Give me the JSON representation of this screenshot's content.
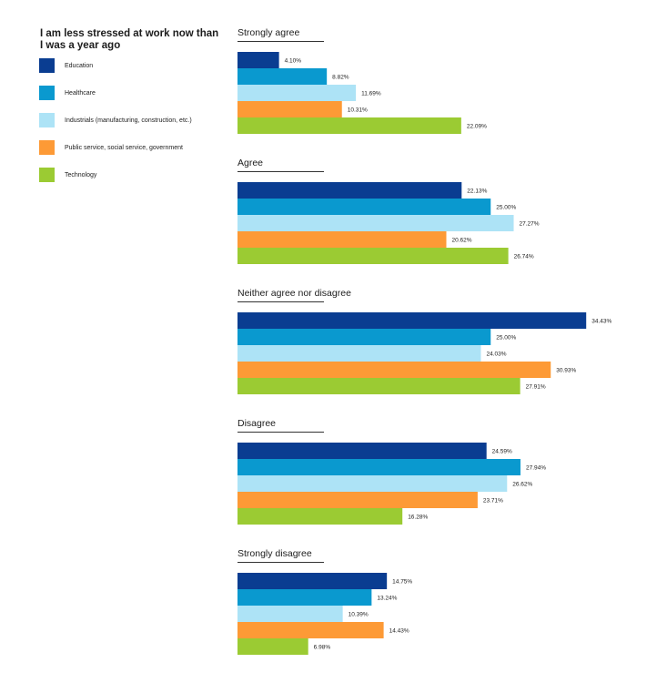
{
  "title": "I am less stressed at work now than I was a year ago",
  "colors": {
    "Education": "#0a3d91",
    "Healthcare": "#0a99cf",
    "Industrials (manufacturing, construction, etc.)": "#ade3f6",
    "Public service, social service, government": "#fd9a36",
    "Technology": "#9bcb33"
  },
  "chart_data": {
    "type": "bar",
    "orientation": "horizontal",
    "title": "I am less stressed at work now than I was a year ago",
    "series_names": [
      "Education",
      "Healthcare",
      "Industrials (manufacturing, construction, etc.)",
      "Public service, social service, government",
      "Technology"
    ],
    "unit": "%",
    "groups": [
      {
        "category": "Strongly agree",
        "values": [
          4.1,
          8.82,
          11.69,
          10.31,
          22.09
        ],
        "labels": [
          "4.10%",
          "8.82%",
          "11.69%",
          "10.31%",
          "22.09%"
        ]
      },
      {
        "category": "Agree",
        "values": [
          22.13,
          25.0,
          27.27,
          20.62,
          26.74
        ],
        "labels": [
          "22.13%",
          "25.00%",
          "27.27%",
          "20.62%",
          "26.74%"
        ]
      },
      {
        "category": "Neither agree nor disagree",
        "values": [
          34.43,
          25.0,
          24.03,
          30.93,
          27.91
        ],
        "labels": [
          "34.43%",
          "25.00%",
          "24.03%",
          "30.93%",
          "27.91%"
        ]
      },
      {
        "category": "Disagree",
        "values": [
          24.59,
          27.94,
          26.62,
          23.71,
          16.28
        ],
        "labels": [
          "24.59%",
          "27.94%",
          "26.62%",
          "23.71%",
          "16.28%"
        ]
      },
      {
        "category": "Strongly disagree",
        "values": [
          14.75,
          13.24,
          10.39,
          14.43,
          6.98
        ],
        "labels": [
          "14.75%",
          "13.24%",
          "10.39%",
          "14.43%",
          "6.98%"
        ]
      }
    ]
  }
}
